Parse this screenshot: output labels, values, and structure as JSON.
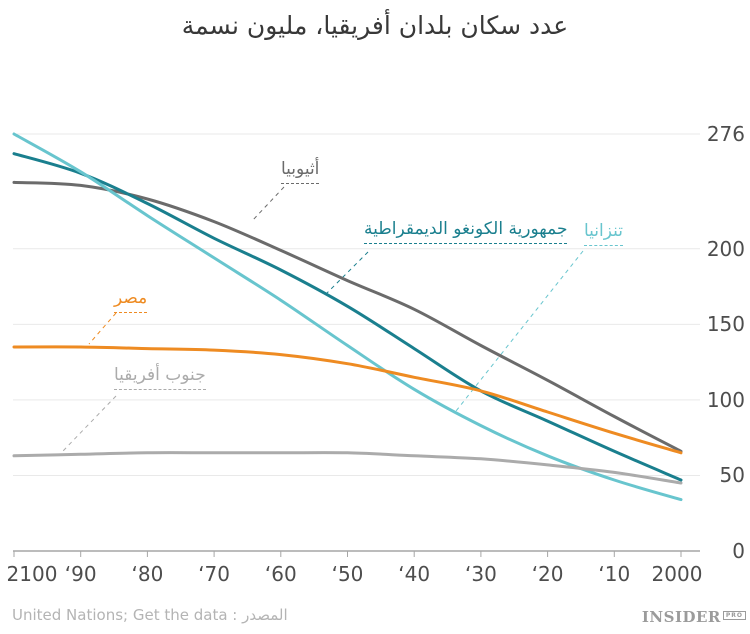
{
  "title": "عدد سكان بلدان أفريقيا، مليون نسمة",
  "footer": {
    "source_label": "المصدر",
    "colon": " : ",
    "source_name": "United Nations",
    "semicolon": "; ",
    "get_data_label": "Get the data",
    "logo_text": "INSIDER",
    "logo_badge": "PRO"
  },
  "chart_data": {
    "type": "line",
    "title": "عدد سكان بلدان أفريقيا، مليون نسمة",
    "unit": "مليون نسمة",
    "x_axis": {
      "reversed": true,
      "years": [
        2100,
        2090,
        2080,
        2070,
        2060,
        2050,
        2040,
        2030,
        2020,
        2010,
        2000
      ],
      "tick_labels": [
        "2100",
        "‘90",
        "‘80",
        "‘70",
        "‘60",
        "‘50",
        "‘40",
        "‘30",
        "‘20",
        "‘10",
        "2000"
      ]
    },
    "y_axis": {
      "side": "right",
      "range": [
        0,
        276
      ],
      "ticks": [
        0,
        50,
        100,
        150,
        200,
        276
      ],
      "grid": true
    },
    "series": [
      {
        "id": "ethiopia",
        "name": "أثيوبيا",
        "color": "#6b6b6b",
        "values": [
          244,
          242,
          233,
          218,
          199,
          179,
          160,
          136,
          113,
          89,
          66
        ]
      },
      {
        "id": "drc-congo",
        "name": "جمهورية الكونغو الديمقراطية",
        "color": "#1a7f8e",
        "values": [
          263,
          250,
          230,
          207,
          186,
          162,
          134,
          106,
          86,
          66,
          47
        ]
      },
      {
        "id": "tanzania",
        "name": "تنزانيا",
        "color": "#68c5ce",
        "values": [
          276,
          251,
          222,
          194,
          166,
          136,
          107,
          83,
          63,
          47,
          34
        ]
      },
      {
        "id": "egypt",
        "name": "مصر",
        "color": "#ee8b22",
        "values": [
          135,
          135,
          134,
          133,
          130,
          124,
          115,
          106,
          92,
          78,
          65
        ]
      },
      {
        "id": "south-africa",
        "name": "جنوب أفريقيا",
        "color": "#ababab",
        "values": [
          63,
          64,
          65,
          65,
          65,
          65,
          63,
          61,
          57,
          52,
          45
        ]
      }
    ]
  }
}
